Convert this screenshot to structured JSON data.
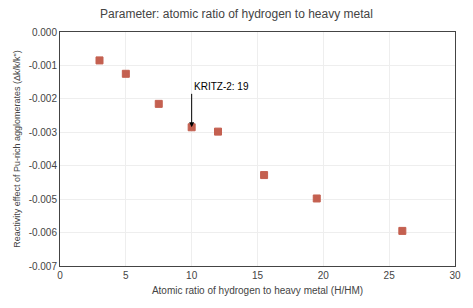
{
  "chart_data": {
    "type": "scatter",
    "title": "Parameter: atomic ratio of hydrogen to heavy metal",
    "xlabel": "Atomic ratio of hydrogen to heavy metal (H/HM)",
    "ylabel": "Reactivity effect of Pu-rich agglomerates (Δk/k/k\")",
    "x": [
      3,
      5,
      7.5,
      10,
      12,
      15.5,
      19.5,
      26
    ],
    "values": [
      -0.00085,
      -0.00125,
      -0.00215,
      -0.00285,
      -0.00298,
      -0.00428,
      -0.00498,
      -0.00595
    ],
    "yerr": [
      8e-05,
      6e-05,
      6e-05,
      6e-05,
      5e-05,
      8e-05,
      3e-05,
      8e-05
    ],
    "color": "#c46050",
    "marker": "square",
    "xlim": [
      0,
      30
    ],
    "ylim": [
      -0.007,
      0.0
    ],
    "xticks": [
      0,
      5,
      10,
      15,
      20,
      25,
      30
    ],
    "yticks": [
      {
        "value": 0,
        "label": "0.000"
      },
      {
        "value": -0.001,
        "label": "-0.001"
      },
      {
        "value": -0.002,
        "label": "-0.002"
      },
      {
        "value": -0.003,
        "label": "-0.003"
      },
      {
        "value": -0.004,
        "label": "-0.004"
      },
      {
        "value": -0.005,
        "label": "-0.005"
      },
      {
        "value": -0.006,
        "label": "-0.006"
      },
      {
        "value": -0.007,
        "label": "-0.007"
      }
    ],
    "grid": true,
    "annotations": [
      {
        "text": "KRITZ-2: 19",
        "x": 10,
        "y": -0.00285,
        "text_x": 10,
        "text_y": -0.00185
      }
    ]
  }
}
